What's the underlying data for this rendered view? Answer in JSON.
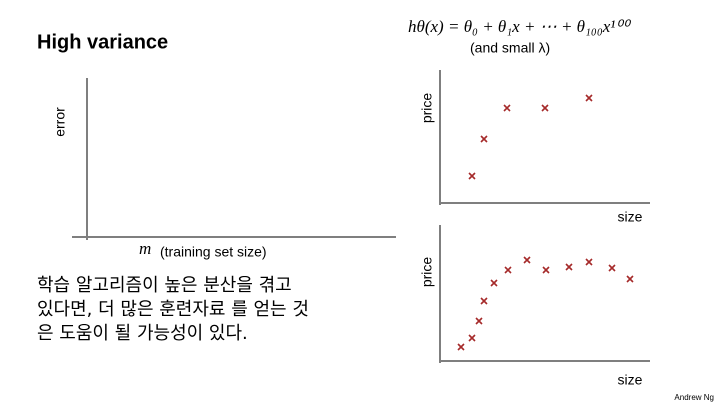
{
  "title": "High variance",
  "formula": "hθ(x) = θ₀ + θ₁x + ⋯ + θ₁₀₀x¹⁰⁰",
  "formula_note": "(and small λ)",
  "left_plot": {
    "y_label": "error",
    "x_symbol": "m",
    "x_label": "(training set size)"
  },
  "top_plot": {
    "y_label": "price",
    "x_label": "size"
  },
  "bottom_plot": {
    "y_label": "price",
    "x_label": "size"
  },
  "body_text": [
    "학습 알고리즘이 높은 분산을 겪고",
    "있다면, 더 많은 훈련자료 를 얻는 것",
    "은 도움이 될 가능성이 있다."
  ],
  "footer": "Andrew Ng"
}
